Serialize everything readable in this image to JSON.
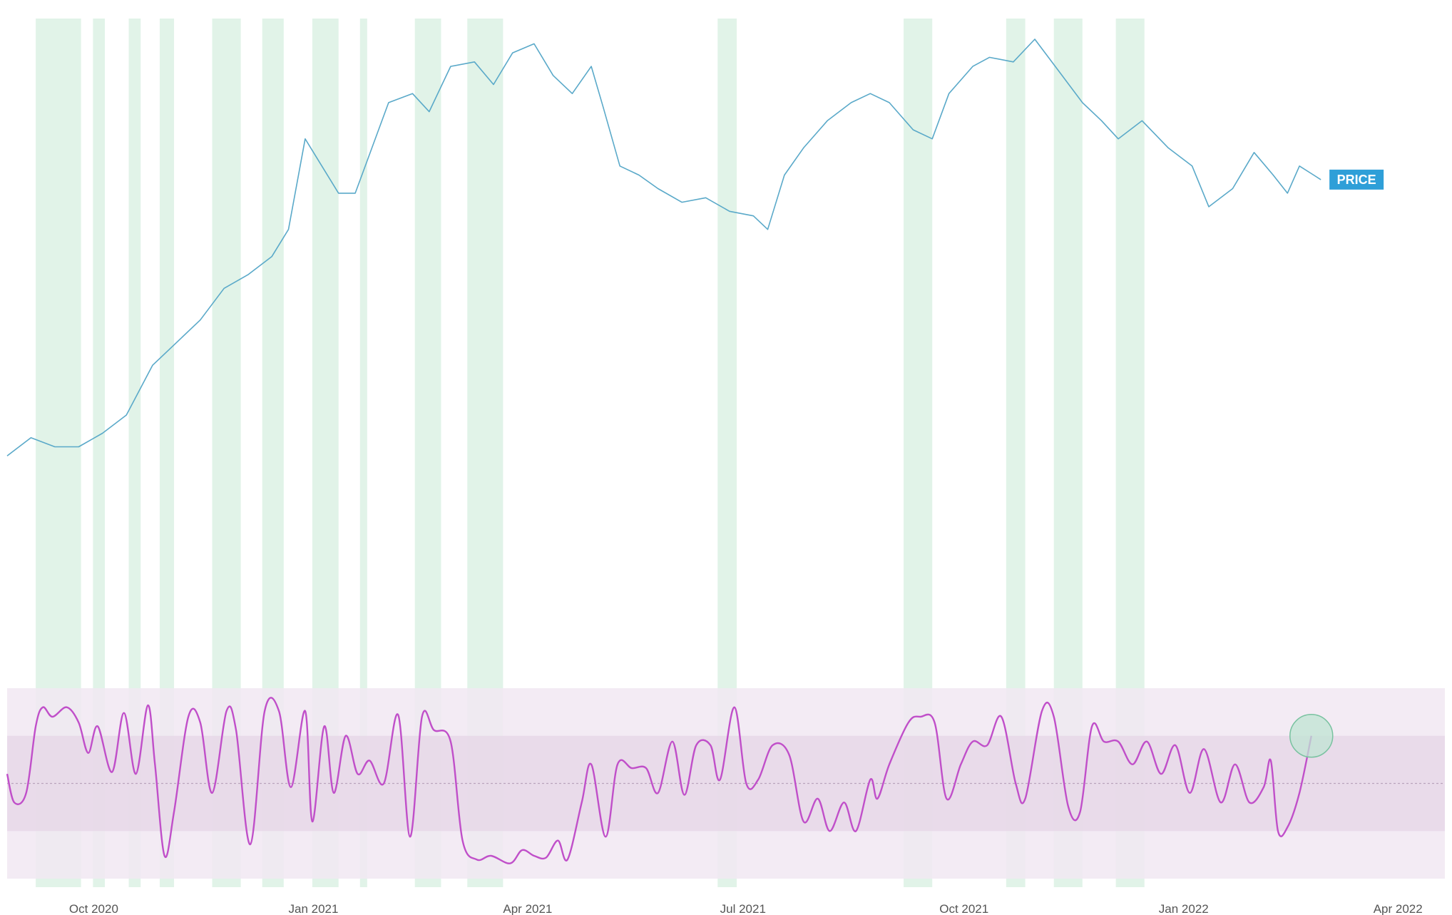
{
  "colors": {
    "price_line": "#5aa9c9",
    "oscillator_line": "#c04fc9",
    "highlight_band": "#dff2e7",
    "oscillator_outer_band": "#f1e7f2",
    "oscillator_inner_band": "#e6d8e8",
    "midline": "#b9a3bc",
    "price_tag_bg": "#2e9fd8",
    "marker_fill": "#bfe4d3",
    "marker_stroke": "#79c2a0",
    "axis_text": "#555555"
  },
  "chart_data": {
    "type": "line",
    "title": "",
    "xlabel": "",
    "ylabel": "",
    "grid": false,
    "legend": "none",
    "x_axis": {
      "range": [
        "2020-09-05",
        "2022-05-01"
      ],
      "ticks": [
        {
          "date": "2020-10-01",
          "label": "Oct 2020"
        },
        {
          "date": "2021-01-01",
          "label": "Jan 2021"
        },
        {
          "date": "2021-04-01",
          "label": "Apr 2021"
        },
        {
          "date": "2021-07-01",
          "label": "Jul 2021"
        },
        {
          "date": "2021-10-01",
          "label": "Oct 2021"
        },
        {
          "date": "2022-01-01",
          "label": "Jan 2022"
        },
        {
          "date": "2022-04-01",
          "label": "Apr 2022"
        }
      ]
    },
    "price_series": {
      "name": "",
      "label": "PRICE",
      "y_range": [
        0,
        100
      ],
      "points": [
        [
          "2020-09-05",
          8
        ],
        [
          "2020-09-15",
          12
        ],
        [
          "2020-09-25",
          10
        ],
        [
          "2020-10-05",
          10
        ],
        [
          "2020-10-15",
          13
        ],
        [
          "2020-10-25",
          17
        ],
        [
          "2020-11-05",
          28
        ],
        [
          "2020-11-15",
          33
        ],
        [
          "2020-11-25",
          38
        ],
        [
          "2020-12-05",
          45
        ],
        [
          "2020-12-15",
          48
        ],
        [
          "2020-12-25",
          52
        ],
        [
          "2021-01-01",
          58
        ],
        [
          "2021-01-08",
          78
        ],
        [
          "2021-01-15",
          72
        ],
        [
          "2021-01-22",
          66
        ],
        [
          "2021-01-29",
          66
        ],
        [
          "2021-02-05",
          76
        ],
        [
          "2021-02-12",
          86
        ],
        [
          "2021-02-22",
          88
        ],
        [
          "2021-03-01",
          84
        ],
        [
          "2021-03-10",
          94
        ],
        [
          "2021-03-20",
          95
        ],
        [
          "2021-03-28",
          90
        ],
        [
          "2021-04-05",
          97
        ],
        [
          "2021-04-14",
          99
        ],
        [
          "2021-04-22",
          92
        ],
        [
          "2021-04-30",
          88
        ],
        [
          "2021-05-08",
          94
        ],
        [
          "2021-05-13",
          85
        ],
        [
          "2021-05-20",
          72
        ],
        [
          "2021-05-28",
          70
        ],
        [
          "2021-06-05",
          67
        ],
        [
          "2021-06-15",
          64
        ],
        [
          "2021-06-25",
          65
        ],
        [
          "2021-07-05",
          62
        ],
        [
          "2021-07-15",
          61
        ],
        [
          "2021-07-21",
          58
        ],
        [
          "2021-07-28",
          70
        ],
        [
          "2021-08-05",
          76
        ],
        [
          "2021-08-15",
          82
        ],
        [
          "2021-08-25",
          86
        ],
        [
          "2021-09-02",
          88
        ],
        [
          "2021-09-10",
          86
        ],
        [
          "2021-09-20",
          80
        ],
        [
          "2021-09-28",
          78
        ],
        [
          "2021-10-05",
          88
        ],
        [
          "2021-10-15",
          94
        ],
        [
          "2021-10-22",
          96
        ],
        [
          "2021-11-01",
          95
        ],
        [
          "2021-11-10",
          100
        ],
        [
          "2021-11-20",
          93
        ],
        [
          "2021-11-30",
          86
        ],
        [
          "2021-12-08",
          82
        ],
        [
          "2021-12-15",
          78
        ],
        [
          "2021-12-25",
          82
        ],
        [
          "2022-01-05",
          76
        ],
        [
          "2022-01-15",
          72
        ],
        [
          "2022-01-22",
          63
        ],
        [
          "2022-02-01",
          67
        ],
        [
          "2022-02-10",
          75
        ],
        [
          "2022-02-18",
          70
        ],
        [
          "2022-02-24",
          66
        ],
        [
          "2022-03-01",
          72
        ],
        [
          "2022-03-07",
          70
        ],
        [
          "2022-03-10",
          69
        ]
      ]
    },
    "oscillator_series": {
      "name": "",
      "y_range": [
        0,
        100
      ],
      "outer_band": [
        0,
        100
      ],
      "inner_band": [
        25,
        75
      ],
      "midline": 50,
      "points": [
        [
          "2020-09-05",
          55
        ],
        [
          "2020-09-08",
          40
        ],
        [
          "2020-09-13",
          45
        ],
        [
          "2020-09-17",
          80
        ],
        [
          "2020-09-20",
          90
        ],
        [
          "2020-09-24",
          85
        ],
        [
          "2020-09-30",
          90
        ],
        [
          "2020-10-05",
          82
        ],
        [
          "2020-10-09",
          66
        ],
        [
          "2020-10-13",
          80
        ],
        [
          "2020-10-19",
          56
        ],
        [
          "2020-10-24",
          87
        ],
        [
          "2020-10-29",
          55
        ],
        [
          "2020-11-03",
          91
        ],
        [
          "2020-11-06",
          60
        ],
        [
          "2020-11-10",
          12
        ],
        [
          "2020-11-14",
          35
        ],
        [
          "2020-11-20",
          85
        ],
        [
          "2020-11-25",
          82
        ],
        [
          "2020-11-30",
          45
        ],
        [
          "2020-12-06",
          88
        ],
        [
          "2020-12-10",
          78
        ],
        [
          "2020-12-16",
          18
        ],
        [
          "2020-12-22",
          88
        ],
        [
          "2020-12-28",
          88
        ],
        [
          "2021-01-02",
          48
        ],
        [
          "2021-01-08",
          88
        ],
        [
          "2021-01-11",
          30
        ],
        [
          "2021-01-16",
          80
        ],
        [
          "2021-01-20",
          45
        ],
        [
          "2021-01-25",
          75
        ],
        [
          "2021-01-30",
          55
        ],
        [
          "2021-02-04",
          62
        ],
        [
          "2021-02-10",
          50
        ],
        [
          "2021-02-16",
          86
        ],
        [
          "2021-02-21",
          22
        ],
        [
          "2021-02-26",
          85
        ],
        [
          "2021-03-03",
          78
        ],
        [
          "2021-03-10",
          72
        ],
        [
          "2021-03-15",
          20
        ],
        [
          "2021-03-21",
          10
        ],
        [
          "2021-03-27",
          12
        ],
        [
          "2021-04-04",
          8
        ],
        [
          "2021-04-09",
          15
        ],
        [
          "2021-04-14",
          12
        ],
        [
          "2021-04-19",
          11
        ],
        [
          "2021-04-24",
          20
        ],
        [
          "2021-04-28",
          10
        ],
        [
          "2021-05-04",
          40
        ],
        [
          "2021-05-08",
          60
        ],
        [
          "2021-05-14",
          22
        ],
        [
          "2021-05-19",
          60
        ],
        [
          "2021-05-25",
          58
        ],
        [
          "2021-05-31",
          58
        ],
        [
          "2021-06-05",
          45
        ],
        [
          "2021-06-11",
          72
        ],
        [
          "2021-06-16",
          44
        ],
        [
          "2021-06-21",
          70
        ],
        [
          "2021-06-27",
          70
        ],
        [
          "2021-07-01",
          52
        ],
        [
          "2021-07-07",
          90
        ],
        [
          "2021-07-12",
          50
        ],
        [
          "2021-07-17",
          52
        ],
        [
          "2021-07-23",
          70
        ],
        [
          "2021-07-30",
          65
        ],
        [
          "2021-08-05",
          30
        ],
        [
          "2021-08-11",
          42
        ],
        [
          "2021-08-16",
          25
        ],
        [
          "2021-08-22",
          40
        ],
        [
          "2021-08-27",
          25
        ],
        [
          "2021-09-02",
          52
        ],
        [
          "2021-09-05",
          42
        ],
        [
          "2021-09-10",
          60
        ],
        [
          "2021-09-18",
          82
        ],
        [
          "2021-09-23",
          85
        ],
        [
          "2021-09-29",
          82
        ],
        [
          "2021-10-04",
          42
        ],
        [
          "2021-10-10",
          60
        ],
        [
          "2021-10-15",
          72
        ],
        [
          "2021-10-21",
          70
        ],
        [
          "2021-10-27",
          85
        ],
        [
          "2021-11-02",
          50
        ],
        [
          "2021-11-06",
          42
        ],
        [
          "2021-11-13",
          88
        ],
        [
          "2021-11-18",
          85
        ],
        [
          "2021-11-24",
          38
        ],
        [
          "2021-11-29",
          35
        ],
        [
          "2021-12-04",
          80
        ],
        [
          "2021-12-09",
          72
        ],
        [
          "2021-12-15",
          72
        ],
        [
          "2021-12-21",
          60
        ],
        [
          "2021-12-27",
          72
        ],
        [
          "2022-01-02",
          55
        ],
        [
          "2022-01-08",
          70
        ],
        [
          "2022-01-14",
          45
        ],
        [
          "2022-01-20",
          68
        ],
        [
          "2022-01-27",
          40
        ],
        [
          "2022-02-02",
          60
        ],
        [
          "2022-02-08",
          40
        ],
        [
          "2022-02-14",
          48
        ],
        [
          "2022-02-17",
          62
        ],
        [
          "2022-02-20",
          25
        ],
        [
          "2022-02-24",
          27
        ],
        [
          "2022-03-01",
          45
        ],
        [
          "2022-03-06",
          75
        ]
      ],
      "marker": {
        "date": "2022-03-06",
        "value": 75
      }
    },
    "highlight_periods": [
      [
        "2020-09-17",
        "2020-10-06"
      ],
      [
        "2020-10-11",
        "2020-10-16"
      ],
      [
        "2020-10-26",
        "2020-10-31"
      ],
      [
        "2020-11-08",
        "2020-11-14"
      ],
      [
        "2020-11-30",
        "2020-12-12"
      ],
      [
        "2020-12-21",
        "2020-12-30"
      ],
      [
        "2021-01-11",
        "2021-01-22"
      ],
      [
        "2021-01-31",
        "2021-02-03"
      ],
      [
        "2021-02-23",
        "2021-03-06"
      ],
      [
        "2021-03-17",
        "2021-04-01"
      ],
      [
        "2021-06-30",
        "2021-07-08"
      ],
      [
        "2021-09-16",
        "2021-09-28"
      ],
      [
        "2021-10-29",
        "2021-11-06"
      ],
      [
        "2021-11-18",
        "2021-11-30"
      ],
      [
        "2021-12-14",
        "2021-12-26"
      ]
    ]
  }
}
